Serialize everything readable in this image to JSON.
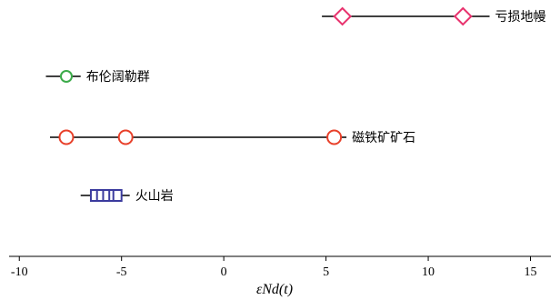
{
  "chart_data": {
    "type": "scatter",
    "title": "",
    "xlabel": "εNd(t)",
    "ylabel": "",
    "xlim": [
      -10.5,
      16
    ],
    "xticks": [
      -10,
      -5,
      0,
      5,
      10,
      15
    ],
    "grid": false,
    "series": [
      {
        "name": "亏损地幔",
        "marker": "diamond",
        "color": "#e8336e",
        "range": [
          4.8,
          13.0
        ],
        "points": [
          5.8,
          11.7
        ]
      },
      {
        "name": "布伦阔勒群",
        "marker": "circle",
        "color": "#3cab4a",
        "range": [
          -8.7,
          -7.0
        ],
        "points": [
          -7.7
        ]
      },
      {
        "name": "磁铁矿矿石",
        "marker": "circle",
        "color": "#e8402a",
        "range": [
          -8.5,
          6.0
        ],
        "points": [
          -7.7,
          -4.8,
          5.4
        ]
      },
      {
        "name": "火山岩",
        "marker": "square",
        "color": "#3b3b9e",
        "range": [
          -7.0,
          -4.6
        ],
        "points": [
          -6.3,
          -6.0,
          -5.7,
          -5.4,
          -5.2
        ]
      }
    ]
  }
}
